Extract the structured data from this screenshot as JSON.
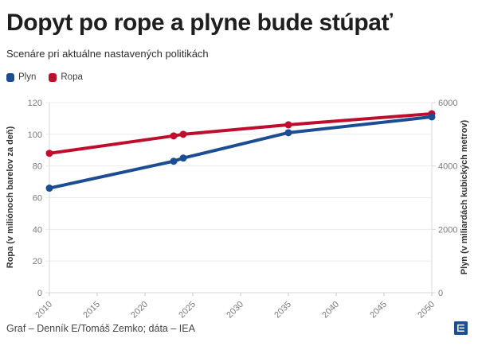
{
  "header": {
    "title": "Dopyt po rope a plyne bude stúpať",
    "subtitle": "Scenáre pri aktuálne nastavených politikách"
  },
  "legend": {
    "items": [
      {
        "label": "Plyn",
        "color": "#1c4d92"
      },
      {
        "label": "Ropa",
        "color": "#bf0d2e"
      }
    ]
  },
  "colors": {
    "plyn_blue": "#1c4d92",
    "ropa_red": "#bf0d2e",
    "gridline": "#ececec",
    "axis_spine": "#d9d9d9",
    "tick_text": "#7a7a7a",
    "logo_blue": "#1d4e94"
  },
  "chart_data": {
    "type": "line",
    "title": "Dopyt po rope a plyne bude stúpať",
    "subtitle": "Scenáre pri aktuálne nastavených politikách",
    "x": [
      2010,
      2023,
      2024,
      2035,
      2050
    ],
    "series": [
      {
        "name": "Ropa",
        "axis": "left",
        "color": "#bf0d2e",
        "values": [
          88,
          99,
          100,
          106,
          113
        ]
      },
      {
        "name": "Plyn",
        "axis": "right",
        "color": "#1c4d92",
        "values": [
          3300,
          4150,
          4250,
          5050,
          5550
        ]
      }
    ],
    "x_axis": {
      "ticks": [
        2010,
        2015,
        2020,
        2025,
        2030,
        2035,
        2040,
        2045,
        2050
      ],
      "range": [
        2010,
        2050
      ]
    },
    "left_axis": {
      "label": "Ropa (v miliónoch barelov za deň)",
      "ticks": [
        0,
        20,
        40,
        60,
        80,
        100,
        120
      ],
      "range": [
        0,
        120
      ]
    },
    "right_axis": {
      "label": "Plyn (v miliardách kubických metrov)",
      "ticks": [
        0,
        2000,
        4000,
        6000
      ],
      "range": [
        0,
        6000
      ]
    },
    "grid": "horizontal",
    "legend_position": "top-left",
    "marker": "circle"
  },
  "footer": {
    "credit": "Graf – Denník E/Tomáš Zemko; dáta – IEA",
    "logo": "dennik-e-logo"
  }
}
